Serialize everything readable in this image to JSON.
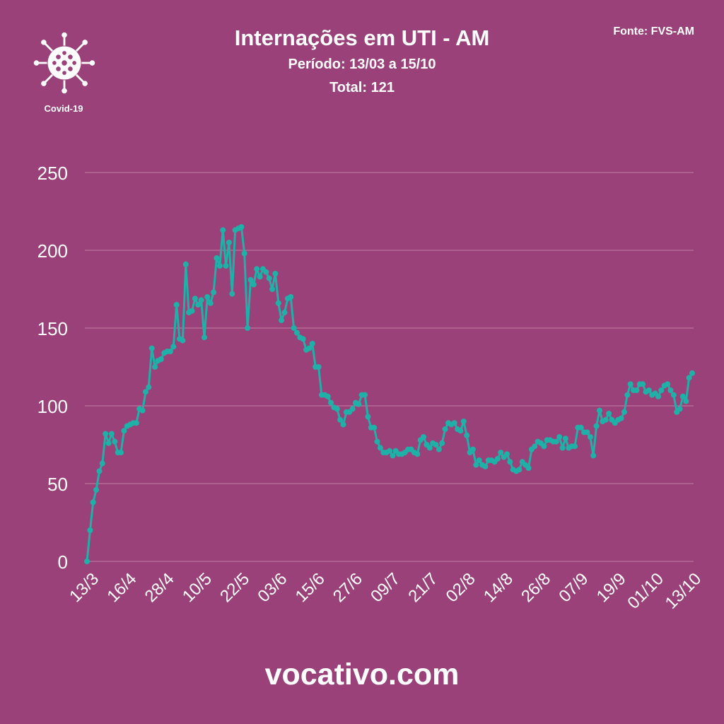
{
  "header": {
    "title": "Internações em UTI - AM",
    "subtitle": "Período: 13/03 a 15/10",
    "total": "Total: 121",
    "source": "Fonte: FVS-AM"
  },
  "logo": {
    "icon": "virus-icon",
    "label": "Covid-19"
  },
  "footer": {
    "site": "vocativo.com"
  },
  "colors": {
    "background": "#9b4179",
    "line": "#1fb0a8",
    "grid": "#b9759c",
    "text": "#ffffff"
  },
  "chart_data": {
    "type": "line",
    "title": "Internações em UTI - AM",
    "subtitle": "Período: 13/03 a 15/10",
    "ylim": [
      0,
      250
    ],
    "yticks": [
      0,
      50,
      100,
      150,
      200,
      250
    ],
    "grid": true,
    "xtick_labels": [
      "13/3",
      "16/4",
      "28/4",
      "10/5",
      "22/5",
      "03/6",
      "15/6",
      "27/6",
      "09/7",
      "21/7",
      "02/8",
      "14/8",
      "26/8",
      "07/9",
      "19/9",
      "01/10",
      "13/10"
    ],
    "series": [
      {
        "values": [
          0,
          20,
          38,
          46,
          58,
          63,
          82,
          76,
          82,
          77,
          70,
          70,
          84,
          87,
          88,
          89,
          89,
          98,
          97,
          109,
          112,
          137,
          125,
          129,
          130,
          134,
          135,
          135,
          138,
          165,
          143,
          142,
          191,
          160,
          161,
          169,
          165,
          168,
          144,
          170,
          166,
          173,
          195,
          190,
          213,
          190,
          205,
          172,
          213,
          214,
          215,
          198,
          150,
          181,
          178,
          188,
          183,
          188,
          186,
          182,
          175,
          185,
          166,
          155,
          160,
          169,
          170,
          150,
          147,
          144,
          143,
          136,
          137,
          140,
          125,
          125,
          107,
          107,
          106,
          102,
          99,
          98,
          91,
          88,
          96,
          96,
          98,
          102,
          101,
          107,
          107,
          93,
          86,
          86,
          77,
          73,
          70,
          70,
          71,
          68,
          71,
          69,
          69,
          70,
          72,
          72,
          70,
          69,
          78,
          80,
          75,
          73,
          76,
          75,
          72,
          76,
          85,
          89,
          88,
          89,
          85,
          84,
          90,
          81,
          70,
          72,
          62,
          65,
          62,
          61,
          65,
          65,
          64,
          66,
          70,
          67,
          69,
          64,
          59,
          58,
          59,
          64,
          62,
          60,
          72,
          74,
          77,
          76,
          74,
          78,
          78,
          77,
          77,
          80,
          73,
          79,
          73,
          74,
          74,
          86,
          86,
          83,
          83,
          80,
          68,
          87,
          97,
          90,
          91,
          95,
          91,
          89,
          91,
          92,
          96,
          107,
          114,
          110,
          110,
          114,
          114,
          109,
          110,
          107,
          108,
          106,
          110,
          113,
          114,
          110,
          107,
          96,
          98,
          106,
          103,
          118,
          121
        ]
      }
    ]
  }
}
